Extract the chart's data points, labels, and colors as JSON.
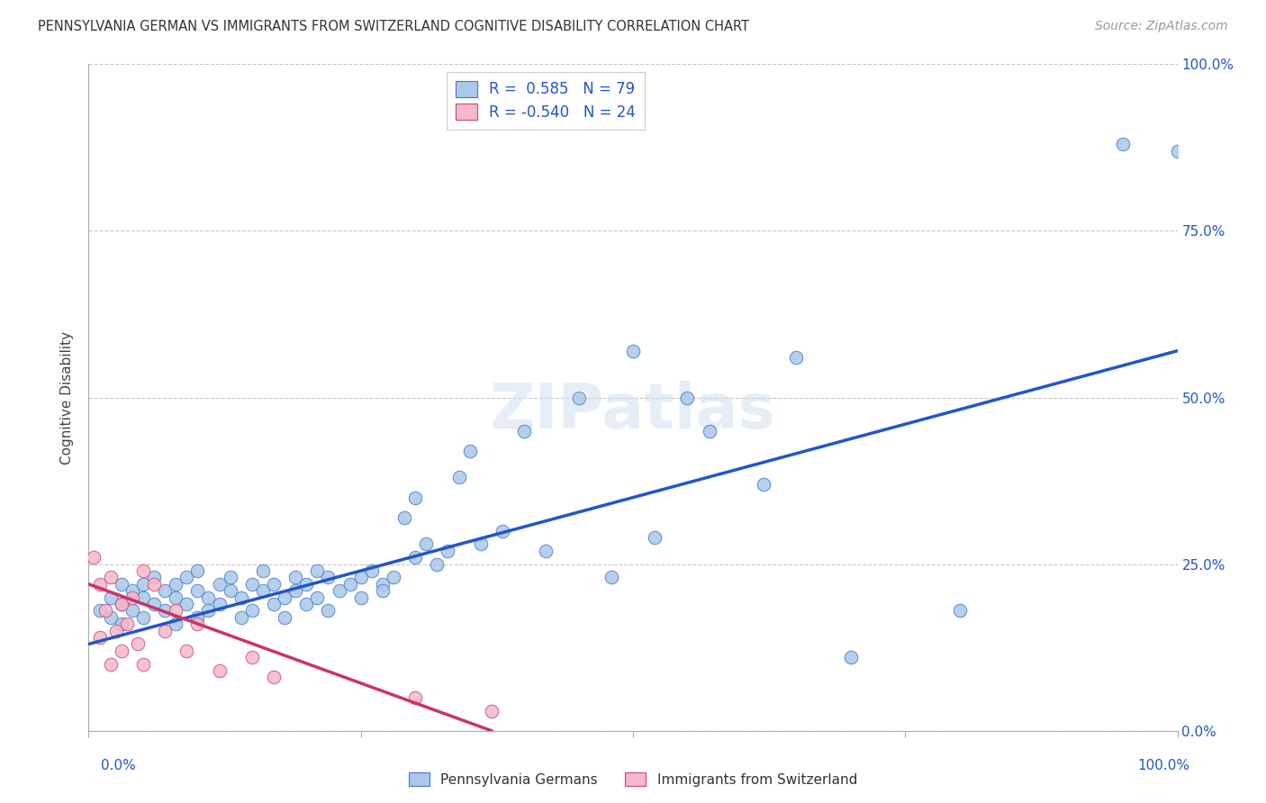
{
  "title": "PENNSYLVANIA GERMAN VS IMMIGRANTS FROM SWITZERLAND COGNITIVE DISABILITY CORRELATION CHART",
  "source": "Source: ZipAtlas.com",
  "ylabel": "Cognitive Disability",
  "ytick_values": [
    0,
    25,
    50,
    75,
    100
  ],
  "xlim": [
    0,
    100
  ],
  "ylim": [
    0,
    100
  ],
  "blue_color": "#aac8e8",
  "blue_edge_color": "#4477cc",
  "blue_line_color": "#2255cc",
  "pink_color": "#f5b8c8",
  "pink_edge_color": "#cc4477",
  "pink_line_color": "#cc3366",
  "legend_blue_label": "Pennsylvania Germans",
  "legend_pink_label": "Immigrants from Switzerland",
  "R_blue": 0.585,
  "N_blue": 79,
  "R_pink": -0.54,
  "N_pink": 24,
  "blue_points_x": [
    1,
    2,
    2,
    3,
    3,
    3,
    4,
    4,
    5,
    5,
    5,
    6,
    6,
    7,
    7,
    8,
    8,
    8,
    9,
    9,
    10,
    10,
    10,
    11,
    11,
    12,
    12,
    13,
    13,
    14,
    14,
    15,
    15,
    16,
    16,
    17,
    17,
    18,
    18,
    19,
    19,
    20,
    20,
    21,
    21,
    22,
    22,
    23,
    24,
    25,
    25,
    26,
    27,
    27,
    28,
    29,
    30,
    30,
    31,
    32,
    33,
    34,
    35,
    36,
    38,
    40,
    42,
    45,
    48,
    50,
    52,
    55,
    57,
    62,
    65,
    70,
    80,
    95,
    100
  ],
  "blue_points_y": [
    18,
    20,
    17,
    19,
    22,
    16,
    21,
    18,
    20,
    17,
    22,
    19,
    23,
    21,
    18,
    20,
    22,
    16,
    19,
    23,
    21,
    17,
    24,
    20,
    18,
    22,
    19,
    21,
    23,
    20,
    17,
    22,
    18,
    21,
    24,
    19,
    22,
    20,
    17,
    23,
    21,
    19,
    22,
    20,
    24,
    18,
    23,
    21,
    22,
    23,
    20,
    24,
    22,
    21,
    23,
    32,
    35,
    26,
    28,
    25,
    27,
    38,
    42,
    28,
    30,
    45,
    27,
    50,
    23,
    57,
    29,
    50,
    45,
    37,
    56,
    11,
    18,
    88,
    87
  ],
  "pink_points_x": [
    0.5,
    1,
    1,
    1.5,
    2,
    2,
    2.5,
    3,
    3,
    3.5,
    4,
    4.5,
    5,
    5,
    6,
    7,
    8,
    9,
    10,
    12,
    15,
    17,
    30,
    37
  ],
  "pink_points_y": [
    26,
    22,
    14,
    18,
    23,
    10,
    15,
    19,
    12,
    16,
    20,
    13,
    24,
    10,
    22,
    15,
    18,
    12,
    16,
    9,
    11,
    8,
    5,
    3
  ],
  "blue_line_x": [
    0,
    100
  ],
  "blue_line_y": [
    13,
    57
  ],
  "pink_line_x": [
    0,
    37
  ],
  "pink_line_y": [
    22,
    0
  ],
  "watermark": "ZIPatlas",
  "background_color": "#ffffff",
  "grid_color": "#c8c8c8"
}
